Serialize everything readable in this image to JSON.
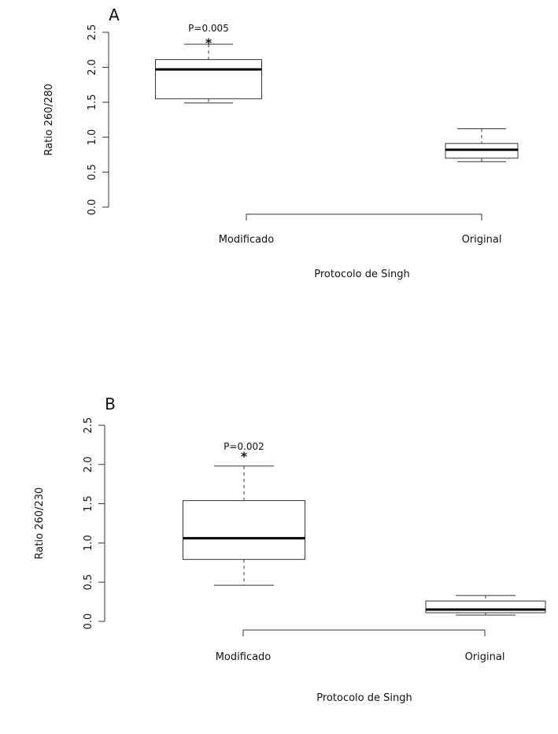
{
  "chart_data": [
    {
      "type": "box",
      "panel_label": "A",
      "xlabel": "Protocolo de Singh",
      "ylabel": "Ratio 260/280",
      "ylim": [
        0,
        2.5
      ],
      "yticks": [
        "0.0",
        "0.5",
        "1.0",
        "1.5",
        "2.0",
        "2.5"
      ],
      "categories": [
        "Modificado",
        "Original"
      ],
      "boxes": [
        {
          "category": "Modificado",
          "whisker_low": 1.49,
          "q1": 1.55,
          "median": 1.97,
          "q3": 2.11,
          "whisker_high": 2.33
        },
        {
          "category": "Original",
          "whisker_low": 0.65,
          "q1": 0.7,
          "median": 0.82,
          "q3": 0.91,
          "whisker_high": 1.12
        }
      ],
      "annotation": {
        "text": "P=0.005",
        "marker": "*",
        "category": "Modificado"
      },
      "grid": false
    },
    {
      "type": "box",
      "panel_label": "B",
      "xlabel": "Protocolo de Singh",
      "ylabel": "Ratio 260/230",
      "ylim": [
        0,
        2.5
      ],
      "yticks": [
        "0.0",
        "0.5",
        "1.0",
        "1.5",
        "2.0",
        "2.5"
      ],
      "categories": [
        "Modificado",
        "Original"
      ],
      "boxes": [
        {
          "category": "Modificado",
          "whisker_low": 0.46,
          "q1": 0.79,
          "median": 1.06,
          "q3": 1.54,
          "whisker_high": 1.98
        },
        {
          "category": "Original",
          "whisker_low": 0.08,
          "q1": 0.11,
          "median": 0.15,
          "q3": 0.26,
          "whisker_high": 0.33
        }
      ],
      "annotation": {
        "text": "P=0.002",
        "marker": "*",
        "category": "Modificado"
      },
      "grid": false
    }
  ]
}
